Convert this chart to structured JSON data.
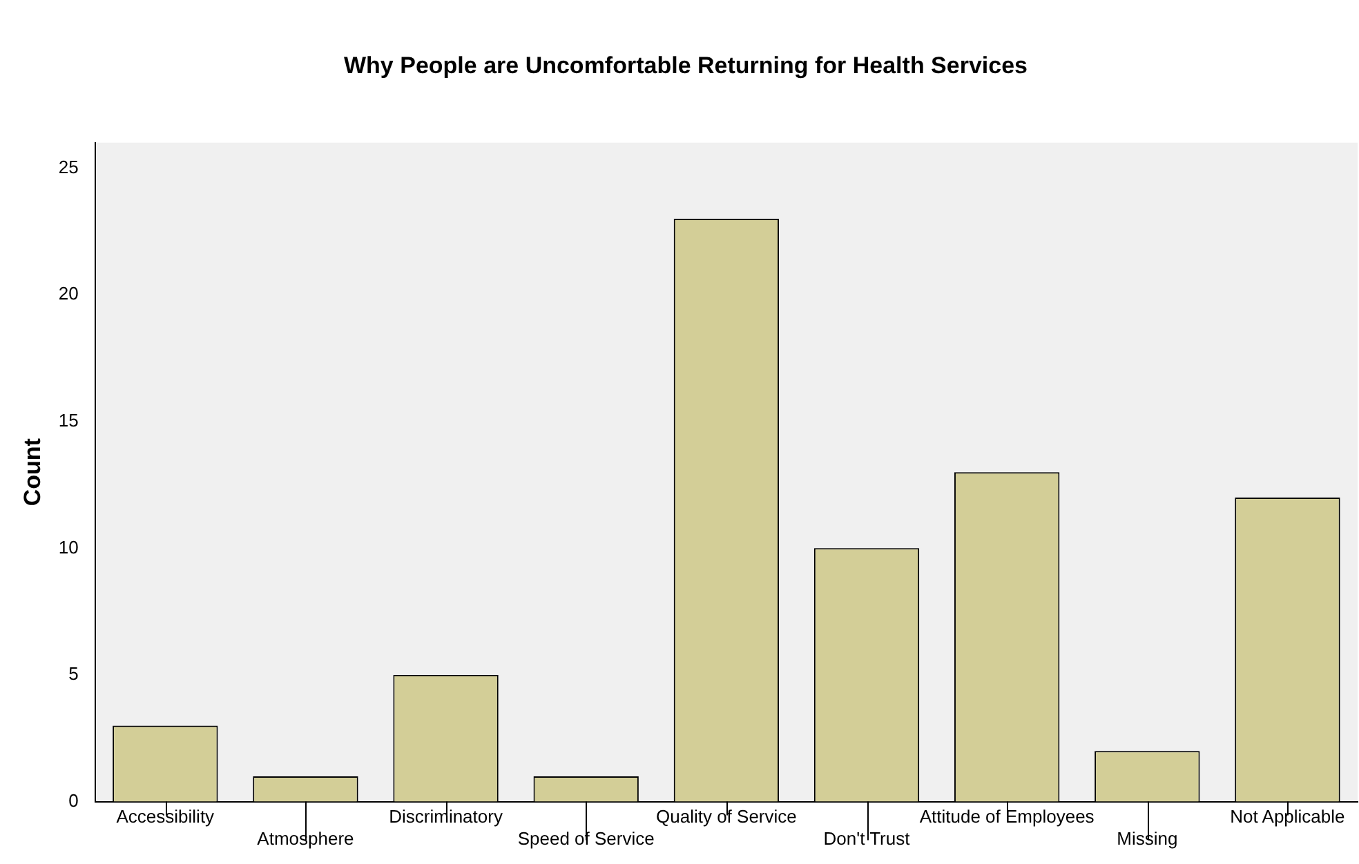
{
  "chart_data": {
    "type": "bar",
    "title": "Why People are Uncomfortable Returning for Health Services",
    "ylabel": "Count",
    "categories": [
      "Accessibility",
      "Atmosphere",
      "Discriminatory",
      "Speed of Service",
      "Quality of Service",
      "Don't Trust",
      "Attitude of Employees",
      "Missing",
      "Not Applicable"
    ],
    "values": [
      3,
      1,
      5,
      1,
      23,
      10,
      13,
      2,
      12
    ],
    "color": "#d3ce97",
    "ylim": [
      0,
      26
    ],
    "yticks": [
      0,
      5,
      10,
      15,
      20,
      25
    ],
    "grid": false,
    "legend": false
  }
}
